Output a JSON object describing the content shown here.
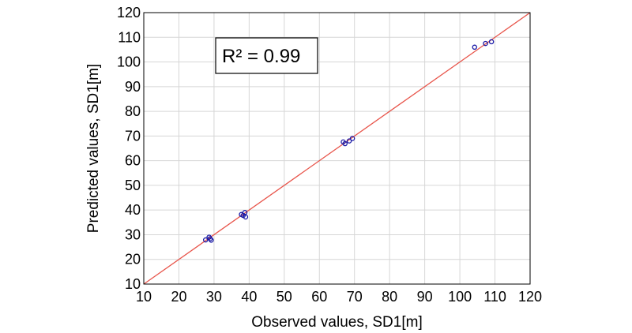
{
  "chart_data": {
    "type": "scatter",
    "xlabel": "Observed values, SD1[m]",
    "ylabel": "Predicted values, SD1[m]",
    "xlim": [
      10,
      120
    ],
    "ylim": [
      10,
      120
    ],
    "xticks": [
      "10",
      "20",
      "30",
      "40",
      "50",
      "60",
      "70",
      "80",
      "90",
      "100",
      "110",
      "120"
    ],
    "yticks": [
      "10",
      "20",
      "30",
      "40",
      "50",
      "60",
      "70",
      "80",
      "90",
      "100",
      "110",
      "120"
    ],
    "grid": true,
    "annotation": "R² = 0.99",
    "points": [
      {
        "x": 27.6,
        "y": 27.9
      },
      {
        "x": 28.6,
        "y": 29.0
      },
      {
        "x": 28.9,
        "y": 28.4
      },
      {
        "x": 29.2,
        "y": 27.8
      },
      {
        "x": 37.8,
        "y": 38.2
      },
      {
        "x": 38.3,
        "y": 37.8
      },
      {
        "x": 38.8,
        "y": 39.0
      },
      {
        "x": 39.0,
        "y": 37.2
      },
      {
        "x": 66.8,
        "y": 67.6
      },
      {
        "x": 67.3,
        "y": 66.9
      },
      {
        "x": 68.5,
        "y": 68.0
      },
      {
        "x": 69.4,
        "y": 69.0
      },
      {
        "x": 104.2,
        "y": 106.0
      },
      {
        "x": 107.3,
        "y": 107.5
      },
      {
        "x": 109.0,
        "y": 108.2
      }
    ],
    "fit_line": {
      "from": [
        10,
        10
      ],
      "to": [
        120,
        120
      ]
    },
    "colors": {
      "points": "#1a1aa6",
      "fit_line": "#e8544a",
      "grid": "#d6d6d6",
      "axis": "#000000"
    }
  }
}
